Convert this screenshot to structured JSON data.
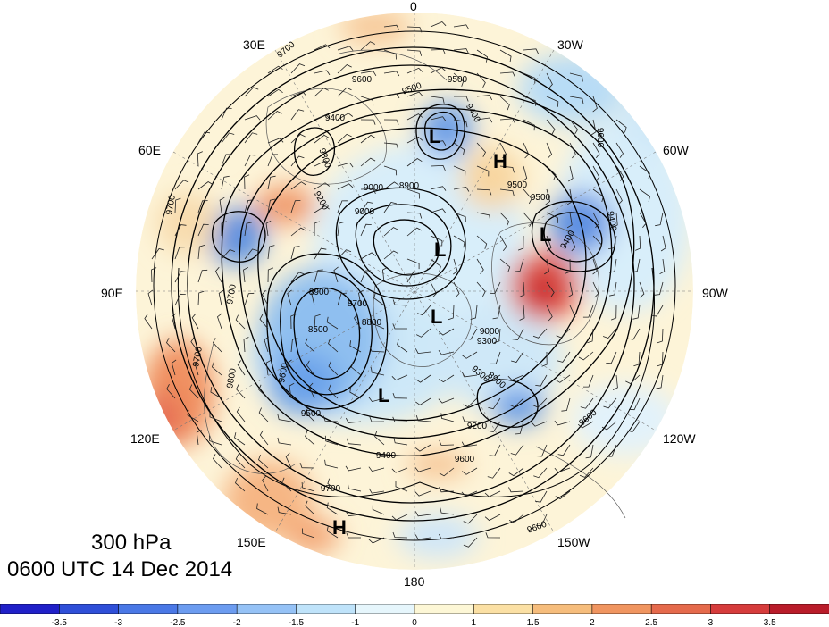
{
  "map": {
    "projection": "north-polar-stereographic",
    "level_label": "300 hPa",
    "time_label": "0600 UTC 14 Dec 2014",
    "longitude_labels": [
      {
        "text": "0",
        "lon": 0
      },
      {
        "text": "30W",
        "lon": -30
      },
      {
        "text": "60W",
        "lon": -60
      },
      {
        "text": "90W",
        "lon": -90
      },
      {
        "text": "120W",
        "lon": -120
      },
      {
        "text": "150W",
        "lon": -150
      },
      {
        "text": "180",
        "lon": 180
      },
      {
        "text": "150E",
        "lon": 150
      },
      {
        "text": "120E",
        "lon": 120
      },
      {
        "text": "90E",
        "lon": 90
      },
      {
        "text": "60E",
        "lon": 60
      },
      {
        "text": "30E",
        "lon": 30
      }
    ],
    "pressure_centers": [
      {
        "label": "L",
        "name": "low-north-atlantic"
      },
      {
        "label": "H",
        "name": "high-greenland"
      },
      {
        "label": "L",
        "name": "low-labrador"
      },
      {
        "label": "L",
        "name": "low-arctic"
      },
      {
        "label": "L",
        "name": "low-beaufort"
      },
      {
        "label": "L",
        "name": "low-siberia"
      },
      {
        "label": "H",
        "name": "high-north-pacific"
      }
    ],
    "contour_labels": [
      "9700",
      "9600",
      "9500",
      "9500",
      "9400",
      "9400",
      "9300",
      "9200",
      "9000",
      "8900",
      "8900",
      "8700",
      "8500",
      "9500",
      "9400",
      "9600",
      "9700",
      "9600",
      "9500",
      "9400",
      "9300",
      "9200",
      "8900",
      "9300",
      "9000",
      "9600",
      "9500",
      "9400",
      "9700",
      "9700",
      "9600",
      "9800",
      "9700",
      "9600",
      "9000",
      "8800"
    ]
  },
  "colorbar": {
    "tick_labels": [
      "-3.5",
      "-3",
      "-2.5",
      "-2",
      "-1.5",
      "-1",
      "0",
      "1",
      "1.5",
      "2",
      "2.5",
      "3",
      "3.5"
    ],
    "colors": [
      "#2020c8",
      "#2f4fd8",
      "#4a78e6",
      "#6c9cf0",
      "#95c2f6",
      "#bfe3fa",
      "#e6f6fc",
      "#fdf7d6",
      "#fbe0a4",
      "#f6bd7c",
      "#f09560",
      "#e56a4c",
      "#d63c3c",
      "#b91c2a"
    ]
  }
}
